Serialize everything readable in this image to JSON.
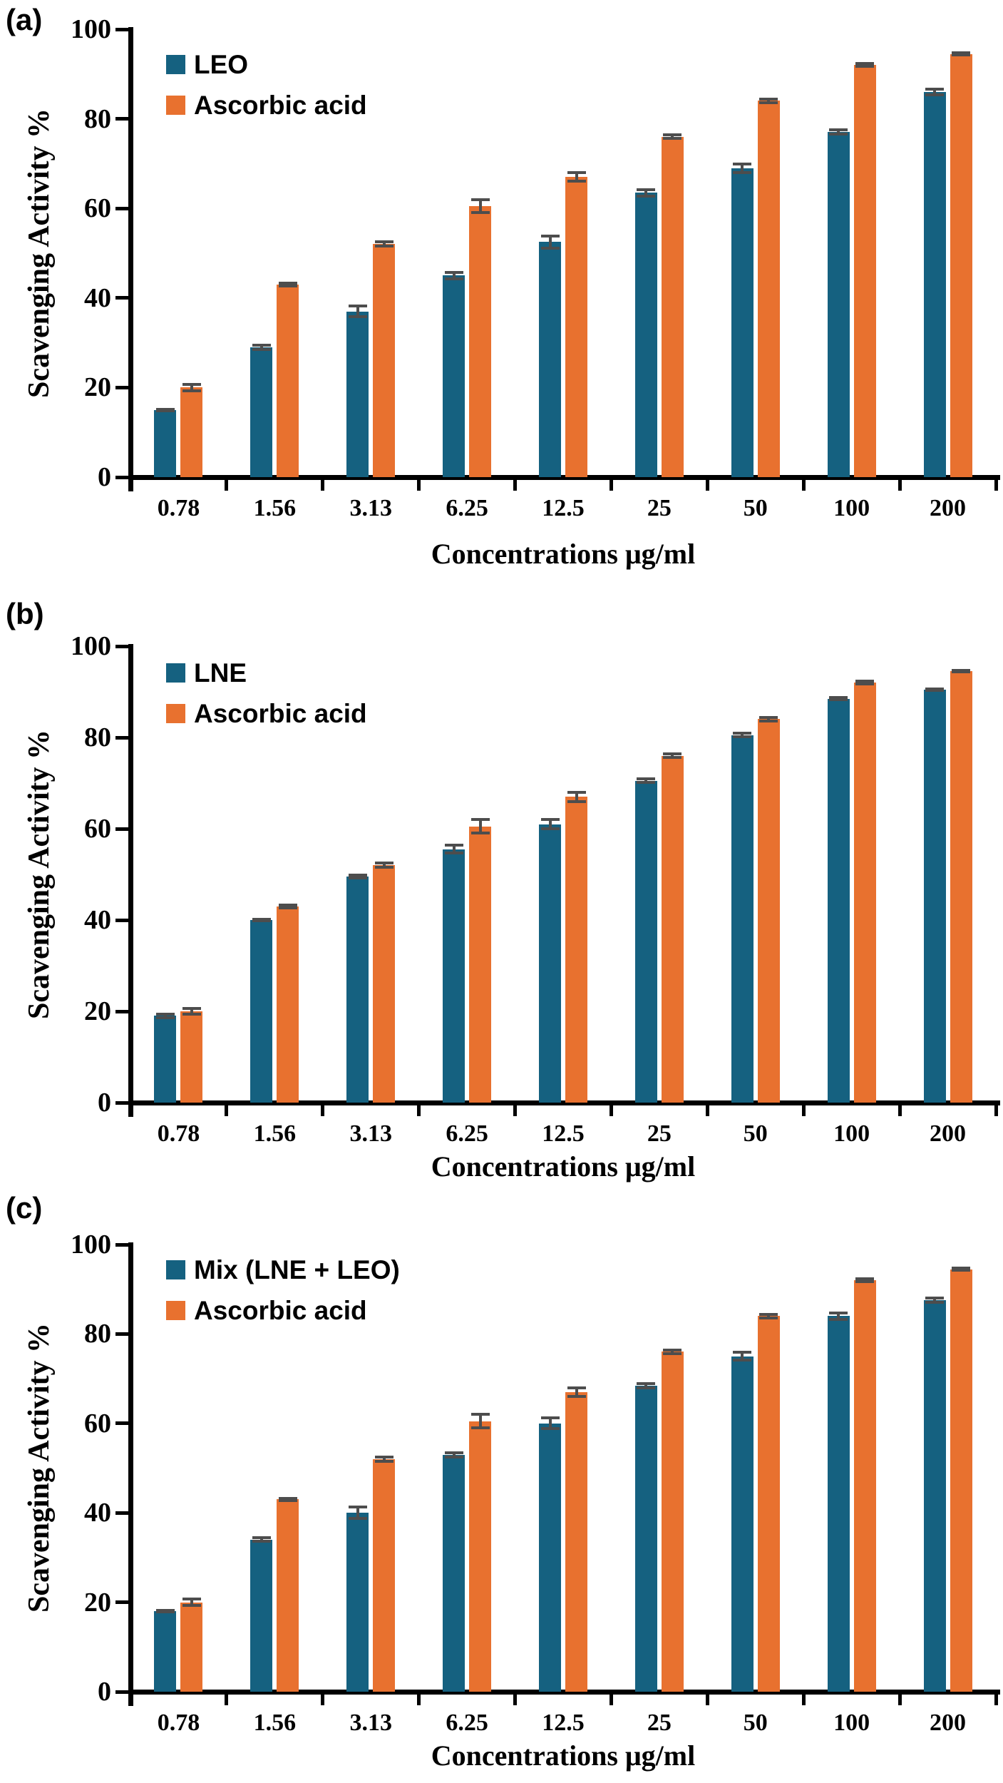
{
  "figure": {
    "background": "#ffffff",
    "axis_color": "#000000",
    "error_bar_color": "#4d4d4d",
    "series_colors": {
      "sample": "#156180",
      "ascorbic": "#E8712F"
    }
  },
  "chart_data": [
    {
      "type": "bar",
      "panel": "(a)",
      "ylabel": "Scavenging Activity %",
      "xlabel": "Concentrations μg/ml",
      "ylim": [
        0,
        100
      ],
      "yticks": [
        0,
        20,
        40,
        60,
        80,
        100
      ],
      "grid": false,
      "legend_position": "top-left-inside",
      "categories": [
        "0.78",
        "1.56",
        "3.13",
        "6.25",
        "12.5",
        "25",
        "50",
        "100",
        "200"
      ],
      "series": [
        {
          "name": "LEO",
          "color": "#156180",
          "values": [
            15,
            29,
            37,
            45,
            52.5,
            63.5,
            69,
            77,
            86
          ],
          "errors": [
            0.5,
            0.8,
            1.5,
            1.0,
            1.7,
            1.0,
            1.3,
            0.8,
            1.0
          ]
        },
        {
          "name": "Ascorbic acid",
          "color": "#E8712F",
          "values": [
            20,
            43,
            52,
            60.5,
            67,
            76,
            84,
            92,
            94.5
          ],
          "errors": [
            1.0,
            0.6,
            0.8,
            1.8,
            1.3,
            0.7,
            0.7,
            0.6,
            0.5
          ]
        }
      ]
    },
    {
      "type": "bar",
      "panel": "(b)",
      "ylabel": "Scavenging Activity %",
      "xlabel": "Concentrations μg/ml",
      "ylim": [
        0,
        100
      ],
      "yticks": [
        0,
        20,
        40,
        60,
        80,
        100
      ],
      "grid": false,
      "legend_position": "top-left-inside",
      "categories": [
        "0.78",
        "1.56",
        "3.13",
        "6.25",
        "12.5",
        "25",
        "50",
        "100",
        "200"
      ],
      "series": [
        {
          "name": "LNE",
          "color": "#156180",
          "values": [
            19,
            40,
            49.5,
            55.5,
            61,
            70.5,
            80.5,
            88.5,
            90.5
          ],
          "errors": [
            0.7,
            0.4,
            0.6,
            1.2,
            1.3,
            0.7,
            0.7,
            0.5,
            0.5
          ]
        },
        {
          "name": "Ascorbic acid",
          "color": "#E8712F",
          "values": [
            20,
            43,
            52,
            60.5,
            67,
            76,
            84,
            92,
            94.5
          ],
          "errors": [
            1.0,
            0.6,
            0.8,
            1.8,
            1.3,
            0.7,
            0.7,
            0.6,
            0.5
          ]
        }
      ]
    },
    {
      "type": "bar",
      "panel": "(c)",
      "ylabel": "Scavenging Activity %",
      "xlabel": "Concentrations μg/ml",
      "ylim": [
        0,
        100
      ],
      "yticks": [
        0,
        20,
        40,
        60,
        80,
        100
      ],
      "grid": false,
      "legend_position": "top-left-inside",
      "categories": [
        "0.78",
        "1.56",
        "3.13",
        "6.25",
        "12.5",
        "25",
        "50",
        "100",
        "200"
      ],
      "series": [
        {
          "name": "Mix (LNE + LEO)",
          "color": "#156180",
          "values": [
            18,
            34,
            40,
            53,
            60,
            68.5,
            75,
            84,
            87.5
          ],
          "errors": [
            0.5,
            0.7,
            1.6,
            0.8,
            1.5,
            0.8,
            1.2,
            1.0,
            0.8
          ]
        },
        {
          "name": "Ascorbic acid",
          "color": "#E8712F",
          "values": [
            20,
            43,
            52,
            60.5,
            67,
            76,
            84,
            92,
            94.5
          ],
          "errors": [
            1.0,
            0.6,
            0.8,
            1.8,
            1.3,
            0.7,
            0.7,
            0.6,
            0.5
          ]
        }
      ]
    }
  ]
}
